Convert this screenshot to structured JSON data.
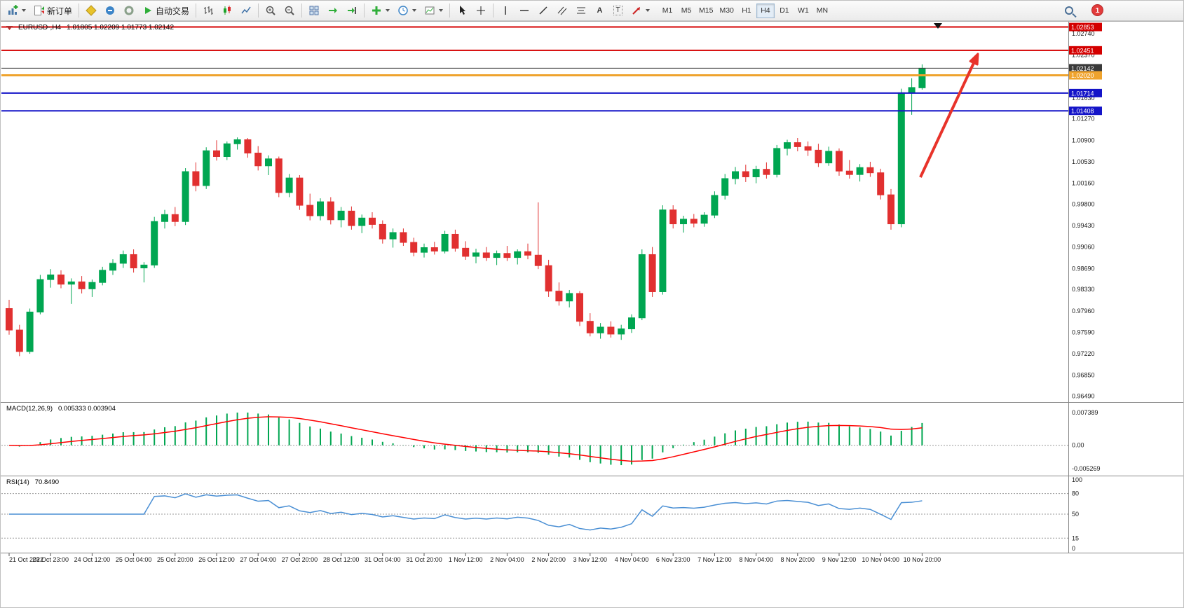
{
  "toolbar": {
    "new_order": "新订单",
    "auto_trading": "自动交易",
    "timeframes": [
      "M1",
      "M5",
      "M15",
      "M30",
      "H1",
      "H4",
      "D1",
      "W1",
      "MN"
    ],
    "active_timeframe": "H4",
    "notification_count": "1",
    "tools": {
      "text_tool": "A",
      "label_tool": "T"
    }
  },
  "chart": {
    "symbol_label": "EURUSD-,H4",
    "ohlc_text": "1.01805 1.02209 1.01773 1.02142",
    "macd_title": "MACD(12,26,9)",
    "macd_values": "0.005333 0.003904",
    "rsi_title": "RSI(14)",
    "rsi_value": "70.8490"
  },
  "chart_data": {
    "type": "candlestick",
    "symbol": "EURUSD-",
    "timeframe": "H4",
    "current_ohlc": {
      "open": 1.01805,
      "high": 1.02209,
      "low": 1.01773,
      "close": 1.02142
    },
    "price_axis_labels": [
      "1.02740",
      "1.02370",
      "1.01630",
      "1.01270",
      "1.00900",
      "1.00530",
      "1.00160",
      "0.99800",
      "0.99430",
      "0.99060",
      "0.98690",
      "0.98330",
      "0.97960",
      "0.97590",
      "0.97220",
      "0.96850",
      "0.96490"
    ],
    "time_axis_labels": [
      "21 Oct 2022",
      "23 Oct 23:00",
      "24 Oct 12:00",
      "25 Oct 04:00",
      "25 Oct 20:00",
      "26 Oct 12:00",
      "27 Oct 04:00",
      "27 Oct 20:00",
      "28 Oct 12:00",
      "31 Oct 04:00",
      "31 Oct 20:00",
      "1 Nov 12:00",
      "2 Nov 04:00",
      "2 Nov 20:00",
      "3 Nov 12:00",
      "4 Nov 04:00",
      "6 Nov 23:00",
      "7 Nov 12:00",
      "8 Nov 04:00",
      "8 Nov 20:00",
      "9 Nov 12:00",
      "10 Nov 04:00",
      "10 Nov 20:00"
    ],
    "horizontal_lines": [
      {
        "price": 1.02853,
        "label": "1.02853",
        "color": "#d40000",
        "width": 2
      },
      {
        "price": 1.02451,
        "label": "1.02451",
        "color": "#d40000",
        "width": 2
      },
      {
        "price": 1.02142,
        "label": "1.02142",
        "color": "#3a3a3a",
        "width": 1
      },
      {
        "price": 1.0202,
        "label": "1.02020",
        "color": "#efa32d",
        "width": 3
      },
      {
        "price": 1.01714,
        "label": "1.01714",
        "color": "#1414c8",
        "width": 2
      },
      {
        "price": 1.01408,
        "label": "1.01408",
        "color": "#1414c8",
        "width": 2
      }
    ],
    "macd_params": {
      "fast": 12,
      "slow": 26,
      "signal": 9
    },
    "macd_scale_labels": [
      "0.007389",
      "0.00",
      "-0.005269"
    ],
    "rsi_period": 14,
    "rsi_scale_labels": [
      "100",
      "80",
      "50",
      "15",
      "0"
    ],
    "rsi_levels": [
      80,
      50,
      15
    ],
    "colors": {
      "bull": "#00a651",
      "bear": "#e13030",
      "macd_histogram": "#00a651",
      "macd_signal": "#ff0000",
      "rsi_line": "#4a8fd4",
      "axis_text": "#1a1a1a"
    },
    "annotation_arrow": {
      "color": "#e8332a"
    },
    "candles": [
      [
        0.98,
        0.9815,
        0.9755,
        0.9763
      ],
      [
        0.9763,
        0.9772,
        0.9718,
        0.9726
      ],
      [
        0.9726,
        0.98,
        0.9722,
        0.9794
      ],
      [
        0.9794,
        0.9858,
        0.979,
        0.985
      ],
      [
        0.985,
        0.9868,
        0.9836,
        0.9858
      ],
      [
        0.9858,
        0.9866,
        0.9835,
        0.9842
      ],
      [
        0.9842,
        0.9852,
        0.9808,
        0.9846
      ],
      [
        0.9846,
        0.9856,
        0.9826,
        0.9834
      ],
      [
        0.9834,
        0.985,
        0.982,
        0.9845
      ],
      [
        0.9845,
        0.9872,
        0.984,
        0.9866
      ],
      [
        0.9866,
        0.9885,
        0.9858,
        0.9878
      ],
      [
        0.9878,
        0.99,
        0.987,
        0.9893
      ],
      [
        0.9893,
        0.9902,
        0.9862,
        0.987
      ],
      [
        0.987,
        0.988,
        0.9845,
        0.9875
      ],
      [
        0.9875,
        0.9958,
        0.987,
        0.995
      ],
      [
        0.995,
        0.997,
        0.9938,
        0.9962
      ],
      [
        0.9962,
        0.9975,
        0.9942,
        0.995
      ],
      [
        0.995,
        1.0042,
        0.9944,
        1.0036
      ],
      [
        1.0036,
        1.0052,
        1.0002,
        1.0012
      ],
      [
        1.0012,
        1.0078,
        1.0006,
        1.0072
      ],
      [
        1.0072,
        1.009,
        1.0055,
        1.0062
      ],
      [
        1.0062,
        1.0088,
        1.0056,
        1.0084
      ],
      [
        1.0084,
        1.0095,
        1.0074,
        1.0091
      ],
      [
        1.0091,
        1.0094,
        1.006,
        1.0068
      ],
      [
        1.0068,
        1.008,
        1.0038,
        1.0046
      ],
      [
        1.0046,
        1.0064,
        1.003,
        1.0058
      ],
      [
        1.0058,
        1.0062,
        0.9992,
        1.0
      ],
      [
        1.0,
        1.0032,
        0.9992,
        1.0025
      ],
      [
        1.0025,
        1.003,
        0.997,
        0.9978
      ],
      [
        0.9978,
        0.9998,
        0.9952,
        0.996
      ],
      [
        0.996,
        0.999,
        0.9952,
        0.9984
      ],
      [
        0.9984,
        0.9992,
        0.9945,
        0.9953
      ],
      [
        0.9953,
        0.9975,
        0.994,
        0.9968
      ],
      [
        0.9968,
        0.9976,
        0.9936,
        0.9943
      ],
      [
        0.9943,
        0.9962,
        0.993,
        0.9956
      ],
      [
        0.9956,
        0.9966,
        0.9938,
        0.9945
      ],
      [
        0.9945,
        0.9952,
        0.9912,
        0.992
      ],
      [
        0.992,
        0.9938,
        0.9905,
        0.9931
      ],
      [
        0.9931,
        0.9938,
        0.9908,
        0.9914
      ],
      [
        0.9914,
        0.9922,
        0.989,
        0.9897
      ],
      [
        0.9897,
        0.9912,
        0.9888,
        0.9905
      ],
      [
        0.9905,
        0.9915,
        0.9893,
        0.9899
      ],
      [
        0.9899,
        0.9934,
        0.9895,
        0.9928
      ],
      [
        0.9928,
        0.9936,
        0.9898,
        0.9904
      ],
      [
        0.9904,
        0.9916,
        0.9884,
        0.989
      ],
      [
        0.989,
        0.9903,
        0.9878,
        0.9896
      ],
      [
        0.9896,
        0.9906,
        0.9882,
        0.9888
      ],
      [
        0.9888,
        0.99,
        0.9875,
        0.9895
      ],
      [
        0.9895,
        0.9908,
        0.9882,
        0.9888
      ],
      [
        0.9888,
        0.9902,
        0.9876,
        0.9898
      ],
      [
        0.9898,
        0.9912,
        0.9885,
        0.9892
      ],
      [
        0.9892,
        0.9983,
        0.9868,
        0.9874
      ],
      [
        0.9874,
        0.9884,
        0.982,
        0.983
      ],
      [
        0.983,
        0.9845,
        0.9805,
        0.9813
      ],
      [
        0.9813,
        0.9832,
        0.9802,
        0.9826
      ],
      [
        0.9826,
        0.983,
        0.977,
        0.9778
      ],
      [
        0.9778,
        0.9792,
        0.9752,
        0.9758
      ],
      [
        0.9758,
        0.9775,
        0.9748,
        0.9768
      ],
      [
        0.9768,
        0.9778,
        0.975,
        0.9756
      ],
      [
        0.9756,
        0.9772,
        0.9746,
        0.9765
      ],
      [
        0.9765,
        0.979,
        0.9758,
        0.9784
      ],
      [
        0.9784,
        0.9902,
        0.978,
        0.9893
      ],
      [
        0.9893,
        0.9906,
        0.982,
        0.9829
      ],
      [
        0.9829,
        0.9978,
        0.9824,
        0.997
      ],
      [
        0.997,
        0.9978,
        0.9938,
        0.9946
      ],
      [
        0.9946,
        0.996,
        0.9931,
        0.9954
      ],
      [
        0.9954,
        0.9963,
        0.994,
        0.9947
      ],
      [
        0.9947,
        0.9966,
        0.9941,
        0.9961
      ],
      [
        0.9961,
        1.0002,
        0.9956,
        0.9995
      ],
      [
        0.9995,
        1.0032,
        0.9988,
        1.0024
      ],
      [
        1.0024,
        1.0044,
        1.0014,
        1.0036
      ],
      [
        1.0036,
        1.0048,
        1.0018,
        1.0027
      ],
      [
        1.0027,
        1.0046,
        1.0016,
        1.004
      ],
      [
        1.004,
        1.0052,
        1.0024,
        1.0031
      ],
      [
        1.0031,
        1.0082,
        1.0026,
        1.0076
      ],
      [
        1.0076,
        1.0091,
        1.0064,
        1.0086
      ],
      [
        1.0086,
        1.0094,
        1.0071,
        1.0079
      ],
      [
        1.0079,
        1.0088,
        1.0063,
        1.0073
      ],
      [
        1.0073,
        1.0084,
        1.0044,
        1.0051
      ],
      [
        1.0051,
        1.0079,
        1.0046,
        1.0071
      ],
      [
        1.0071,
        1.0076,
        1.0029,
        1.0037
      ],
      [
        1.0037,
        1.0056,
        1.0024,
        1.0031
      ],
      [
        1.0031,
        1.0049,
        1.0019,
        1.0043
      ],
      [
        1.0043,
        1.0053,
        1.0027,
        1.0034
      ],
      [
        1.0034,
        1.0041,
        0.9988,
        0.9996
      ],
      [
        0.9996,
        1.0006,
        0.9936,
        0.9946
      ],
      [
        0.9946,
        1.0179,
        0.994,
        1.0172
      ],
      [
        1.0172,
        1.0197,
        1.0134,
        1.0181
      ],
      [
        1.01805,
        1.02209,
        1.01773,
        1.02142
      ]
    ]
  }
}
